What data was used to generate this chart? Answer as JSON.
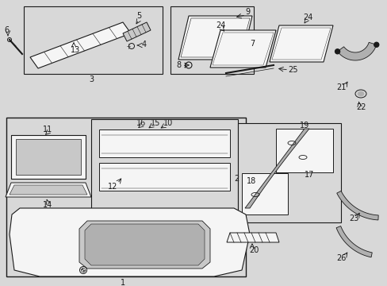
{
  "bg": "#d8d8d8",
  "fg": "#1a1a1a",
  "white": "#f5f5f5",
  "light_gray": "#c8c8c8",
  "mid_gray": "#b0b0b0"
}
